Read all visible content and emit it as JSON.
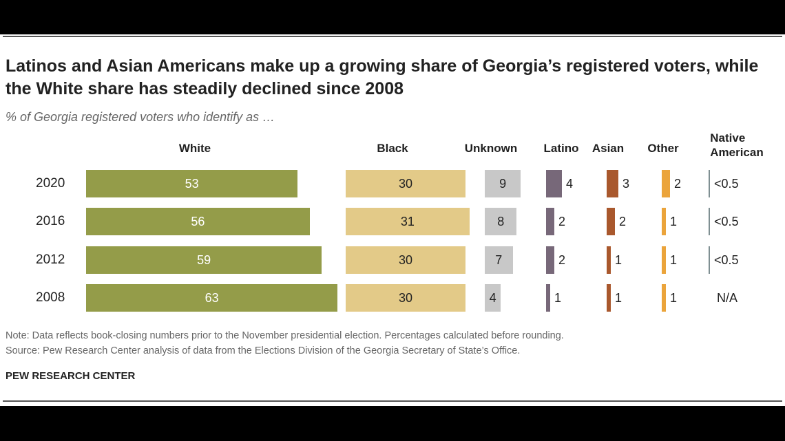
{
  "title": "Latinos and Asian Americans make up a growing share of Georgia’s registered voters, while the White share has steadily declined since 2008",
  "subtitle": "% of Georgia registered voters who identify as …",
  "note": "Note: Data reflects book-closing numbers prior to the November presidential election. Percentages calculated before rounding.",
  "source": "Source: Pew Research Center analysis of data from the Elections Division of the Georgia Secretary of State’s Office.",
  "brand": "PEW RESEARCH CENTER",
  "colors": {
    "White": "#949c49",
    "Black": "#e3ca88",
    "Unknown": "#c8c8c8",
    "Latino": "#776879",
    "Asian": "#a9582d",
    "Other": "#eba43b",
    "Native American": "#7f8f92"
  },
  "chart_data": {
    "type": "bar",
    "orientation": "horizontal",
    "categories": [
      "2020",
      "2016",
      "2012",
      "2008"
    ],
    "series": [
      {
        "name": "White",
        "values": [
          53,
          56,
          59,
          63
        ],
        "labels": [
          "53",
          "56",
          "59",
          "63"
        ]
      },
      {
        "name": "Black",
        "values": [
          30,
          31,
          30,
          30
        ],
        "labels": [
          "30",
          "31",
          "30",
          "30"
        ]
      },
      {
        "name": "Unknown",
        "values": [
          9,
          8,
          7,
          4
        ],
        "labels": [
          "9",
          "8",
          "7",
          "4"
        ]
      },
      {
        "name": "Latino",
        "values": [
          4,
          2,
          2,
          1
        ],
        "labels": [
          "4",
          "2",
          "2",
          "1"
        ]
      },
      {
        "name": "Asian",
        "values": [
          3,
          2,
          1,
          1
        ],
        "labels": [
          "3",
          "2",
          "1",
          "1"
        ]
      },
      {
        "name": "Other",
        "values": [
          2,
          1,
          1,
          1
        ],
        "labels": [
          "2",
          "1",
          "1",
          "1"
        ]
      },
      {
        "name": "Native American",
        "values": [
          0.3,
          0.3,
          0.3,
          null
        ],
        "labels": [
          "<0.5",
          "<0.5",
          "<0.5",
          "N/A"
        ]
      }
    ],
    "column_headers": [
      "White",
      "Black",
      "Unknown",
      "Latino",
      "Asian",
      "Other",
      "Native\nAmerican"
    ]
  }
}
